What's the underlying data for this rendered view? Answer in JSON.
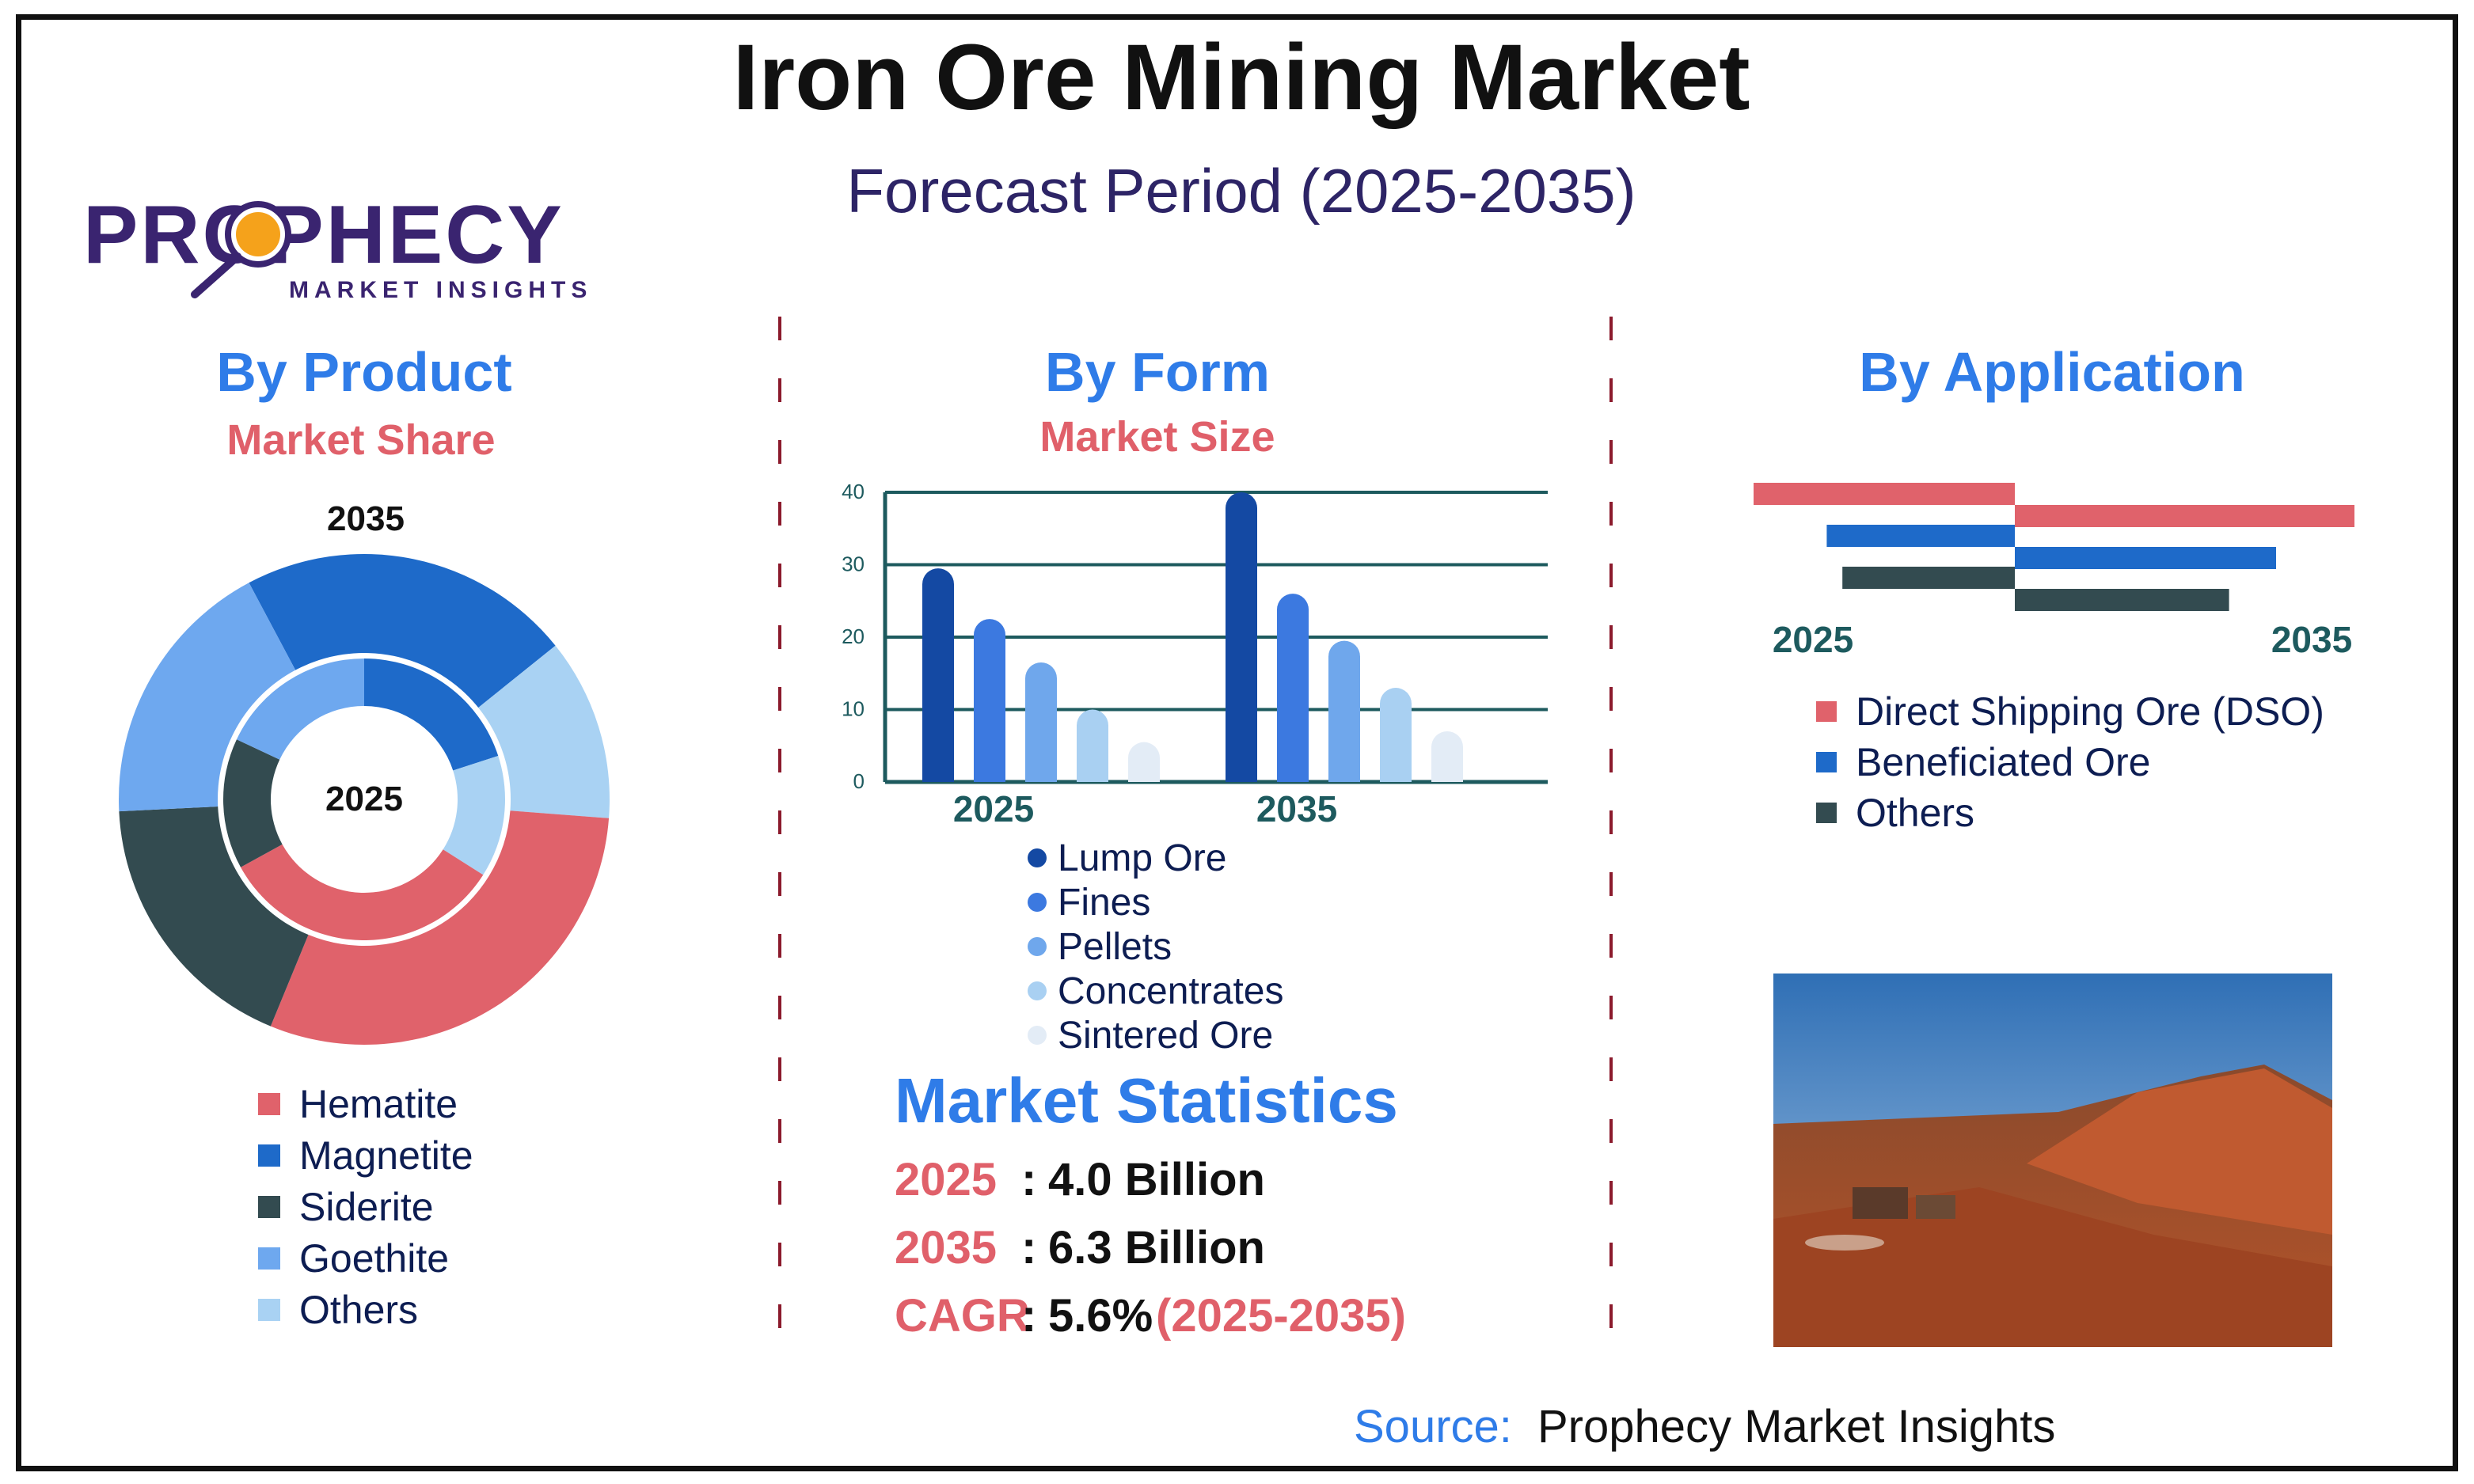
{
  "title": "Iron Ore Mining Market",
  "subtitle": "Forecast Period (2025-2035)",
  "logo": {
    "brand": "PROPHECY",
    "tagline": "MARKET INSIGHTS"
  },
  "colors": {
    "title_blue": "#2f7ce8",
    "accent_red": "#e0606a",
    "dark_navy": "#0d1d52",
    "subtitle_purple": "#2d2466",
    "teal_text": "#1d5a5e",
    "chart_line": "#1d5a5e",
    "logo_purple": "#3a2470",
    "logo_orange": "#f5a21b"
  },
  "source": {
    "label": "Source:",
    "value": "Prophecy Market Insights"
  },
  "statistics": {
    "heading": "Market Statistics",
    "rows": [
      {
        "label": "2025",
        "value": "4.0 Billion",
        "extra": ""
      },
      {
        "label": "2035",
        "value": "6.3 Billion",
        "extra": ""
      },
      {
        "label": "CAGR",
        "value": "5.6%",
        "extra": "(2025-2035)"
      }
    ]
  },
  "chart_data": [
    {
      "type": "pie",
      "title": "By Product",
      "subtitle": "Market Share",
      "outer_label": "2035",
      "inner_label": "2025",
      "series": [
        {
          "name": "Hematite",
          "color": "#e0626b",
          "values": [
            33,
            30
          ]
        },
        {
          "name": "Magnetite",
          "color": "#1e6ac9",
          "values": [
            20,
            22
          ]
        },
        {
          "name": "Siderite",
          "color": "#334b50",
          "values": [
            15,
            18
          ]
        },
        {
          "name": "Goethite",
          "color": "#6ea8ef",
          "values": [
            18,
            18
          ]
        },
        {
          "name": "Others",
          "color": "#a9d2f3",
          "values": [
            14,
            12
          ]
        }
      ],
      "rings": [
        "2025",
        "2035"
      ]
    },
    {
      "type": "bar",
      "title": "By Form",
      "subtitle": "Market Size",
      "categories": [
        "2025",
        "2035"
      ],
      "ylim": [
        0,
        40
      ],
      "yticks": [
        0,
        10,
        20,
        30,
        40
      ],
      "grid": true,
      "series": [
        {
          "name": "Lump Ore",
          "color": "#1449a3",
          "values": [
            29.5,
            40
          ]
        },
        {
          "name": "Fines",
          "color": "#3c79e0",
          "values": [
            22.5,
            26
          ]
        },
        {
          "name": "Pellets",
          "color": "#6fa7ec",
          "values": [
            16.5,
            19.5
          ]
        },
        {
          "name": "Concentrates",
          "color": "#a9d0f2",
          "values": [
            10,
            13
          ]
        },
        {
          "name": "Sintered Ore",
          "color": "#e3ecf6",
          "values": [
            5.5,
            7
          ]
        }
      ]
    },
    {
      "type": "bar",
      "title": "By Application",
      "orientation": "horizontal-opposed",
      "categories": [
        "2025",
        "2035"
      ],
      "series": [
        {
          "name": "Direct Shipping Ore (DSO)",
          "color": "#e0626b",
          "values": [
            50,
            65
          ]
        },
        {
          "name": "Beneficiated Ore",
          "color": "#1e6ac9",
          "values": [
            36,
            50
          ]
        },
        {
          "name": "Others",
          "color": "#334b50",
          "values": [
            33,
            41
          ]
        }
      ]
    }
  ]
}
